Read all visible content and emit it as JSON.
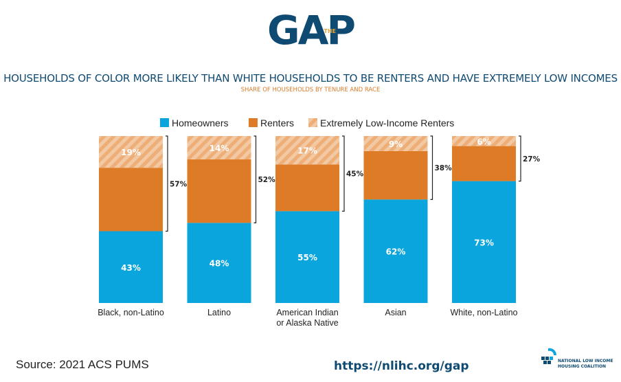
{
  "logo": {
    "main": "GAP",
    "small": "THE"
  },
  "title": "HOUSEHOLDS OF COLOR MORE LIKELY THAN WHITE HOUSEHOLDS TO BE RENTERS AND HAVE EXTREMELY LOW INCOMES",
  "subtitle": "SHARE OF HOUSEHOLDS BY TENURE AND RACE",
  "source": "Source: 2021 ACS PUMS",
  "url": "https://nlihc.org/gap",
  "org": {
    "line1": "NATIONAL LOW INCOME",
    "line2": "HOUSING COALITION"
  },
  "colors": {
    "homeowners": "#0aa5dd",
    "renters": "#de7b27",
    "eli": "#eeae78",
    "title": "#0f4a73",
    "subtitle": "#d97b2a"
  },
  "chart_data": {
    "type": "bar",
    "stacked": true,
    "legend_position": "top-center",
    "categories": [
      "Black, non-Latino",
      "Latino",
      "American Indian\nor Alaska Native",
      "Asian",
      "White, non-Latino"
    ],
    "series": [
      {
        "name": "Homeowners",
        "values": [
          43,
          48,
          55,
          62,
          73
        ]
      },
      {
        "name": "Renters",
        "values": [
          38,
          38,
          28,
          29,
          21
        ]
      },
      {
        "name": "Extremely Low-Income Renters",
        "values": [
          19,
          14,
          17,
          9,
          6
        ]
      }
    ],
    "labels": {
      "homeowners": [
        "43%",
        "48%",
        "55%",
        "62%",
        "73%"
      ],
      "eli": [
        "19%",
        "14%",
        "17%",
        "9%",
        "6%"
      ],
      "renters_total": [
        "57%",
        "52%",
        "45%",
        "38%",
        "27%"
      ]
    },
    "ylim": [
      0,
      100
    ],
    "grid": false
  }
}
